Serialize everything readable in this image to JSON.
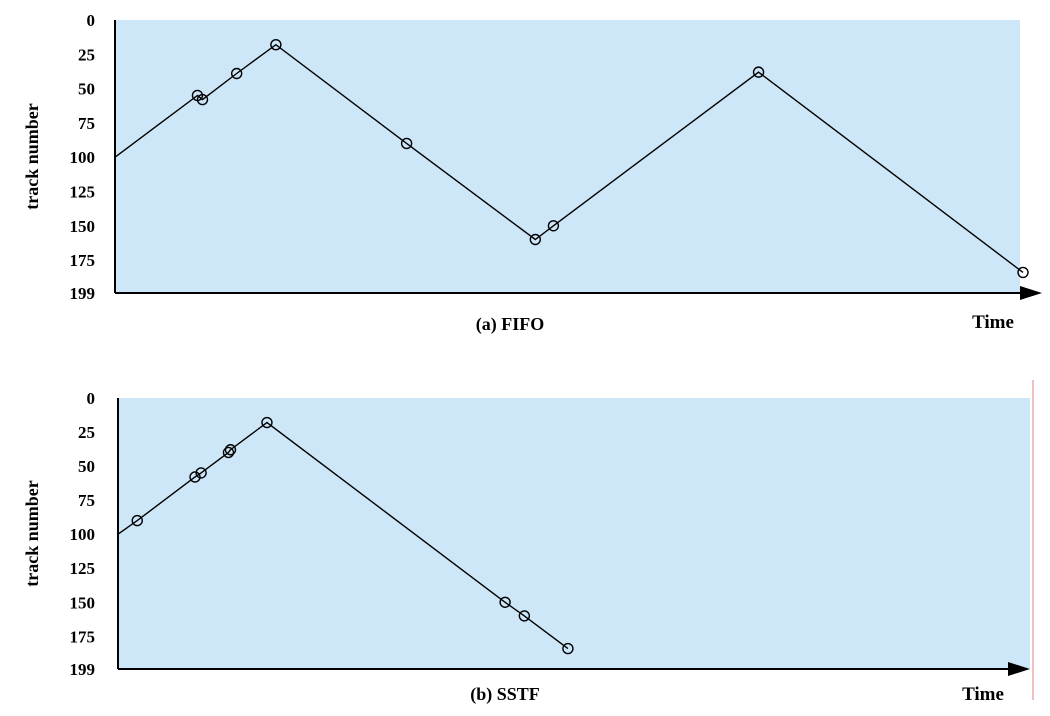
{
  "colors": {
    "plot_background": "#cde7f8",
    "line": "#000000",
    "axis": "#000000",
    "right_border": "#e08080"
  },
  "chart_data": [
    {
      "type": "line",
      "caption": "(a) FIFO",
      "xlabel": "Time",
      "ylabel": "track number",
      "y_inverted": true,
      "ylim": [
        0,
        199
      ],
      "y_ticks": [
        "0",
        "25",
        "50",
        "75",
        "100",
        "125",
        "150",
        "175",
        "199"
      ],
      "x_axis_arrow": true,
      "xlim": [
        0,
        900
      ],
      "start": {
        "x": 0,
        "y": 100
      },
      "points": [
        {
          "x": 82,
          "y": 55
        },
        {
          "x": 87,
          "y": 58
        },
        {
          "x": 121,
          "y": 39
        },
        {
          "x": 160,
          "y": 18
        },
        {
          "x": 290,
          "y": 90
        },
        {
          "x": 418,
          "y": 160
        },
        {
          "x": 436,
          "y": 150
        },
        {
          "x": 640,
          "y": 38
        },
        {
          "x": 903,
          "y": 184
        }
      ]
    },
    {
      "type": "line",
      "caption": "(b) SSTF",
      "xlabel": "Time",
      "ylabel": "track number",
      "y_inverted": true,
      "ylim": [
        0,
        199
      ],
      "y_ticks": [
        "0",
        "25",
        "50",
        "75",
        "100",
        "125",
        "150",
        "175",
        "199"
      ],
      "x_axis_arrow": true,
      "xlim": [
        0,
        900
      ],
      "start": {
        "x": 0,
        "y": 100
      },
      "points": [
        {
          "x": 19,
          "y": 90
        },
        {
          "x": 76,
          "y": 58
        },
        {
          "x": 82,
          "y": 55
        },
        {
          "x": 109,
          "y": 40
        },
        {
          "x": 111,
          "y": 38
        },
        {
          "x": 147,
          "y": 18
        },
        {
          "x": 382,
          "y": 150
        },
        {
          "x": 401,
          "y": 160
        },
        {
          "x": 444,
          "y": 184
        }
      ]
    }
  ]
}
